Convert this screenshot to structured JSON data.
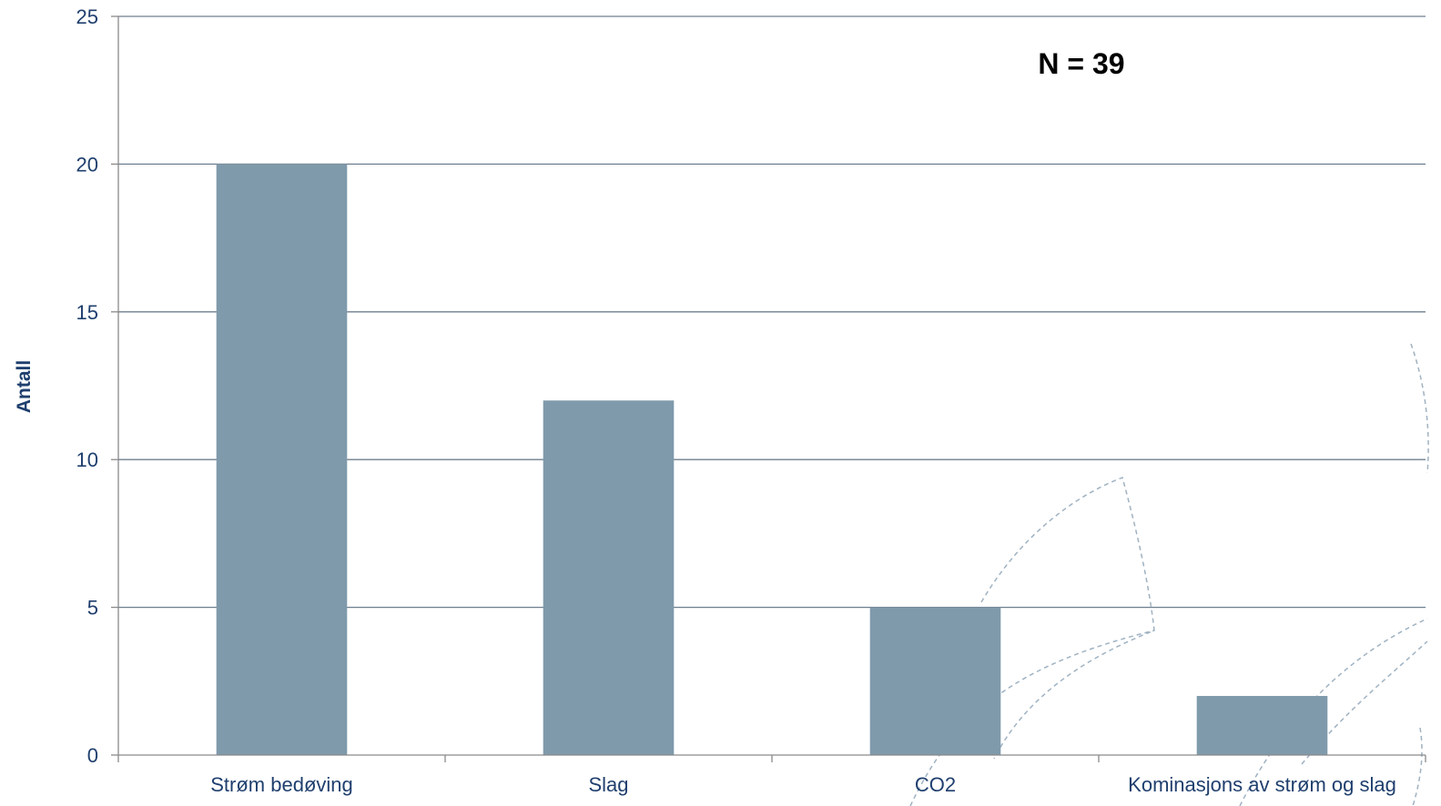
{
  "chart_data": {
    "type": "bar",
    "categories": [
      "Strøm bedøving",
      "Slag",
      "CO2",
      "Kominasjons av strøm og slag"
    ],
    "values": [
      20,
      12,
      5,
      2
    ],
    "title": "",
    "xlabel": "",
    "ylabel": "Antall",
    "ylim": [
      0,
      25
    ],
    "yticks": [
      0,
      5,
      10,
      15,
      20,
      25
    ],
    "grid": true,
    "annotation": "N = 39",
    "colors": {
      "bar": "#7f9aab",
      "grid": "#6f7f8f",
      "axis": "#8a8a8a",
      "text": "#1f3f6e",
      "decoration": "#9fb2c2"
    }
  }
}
